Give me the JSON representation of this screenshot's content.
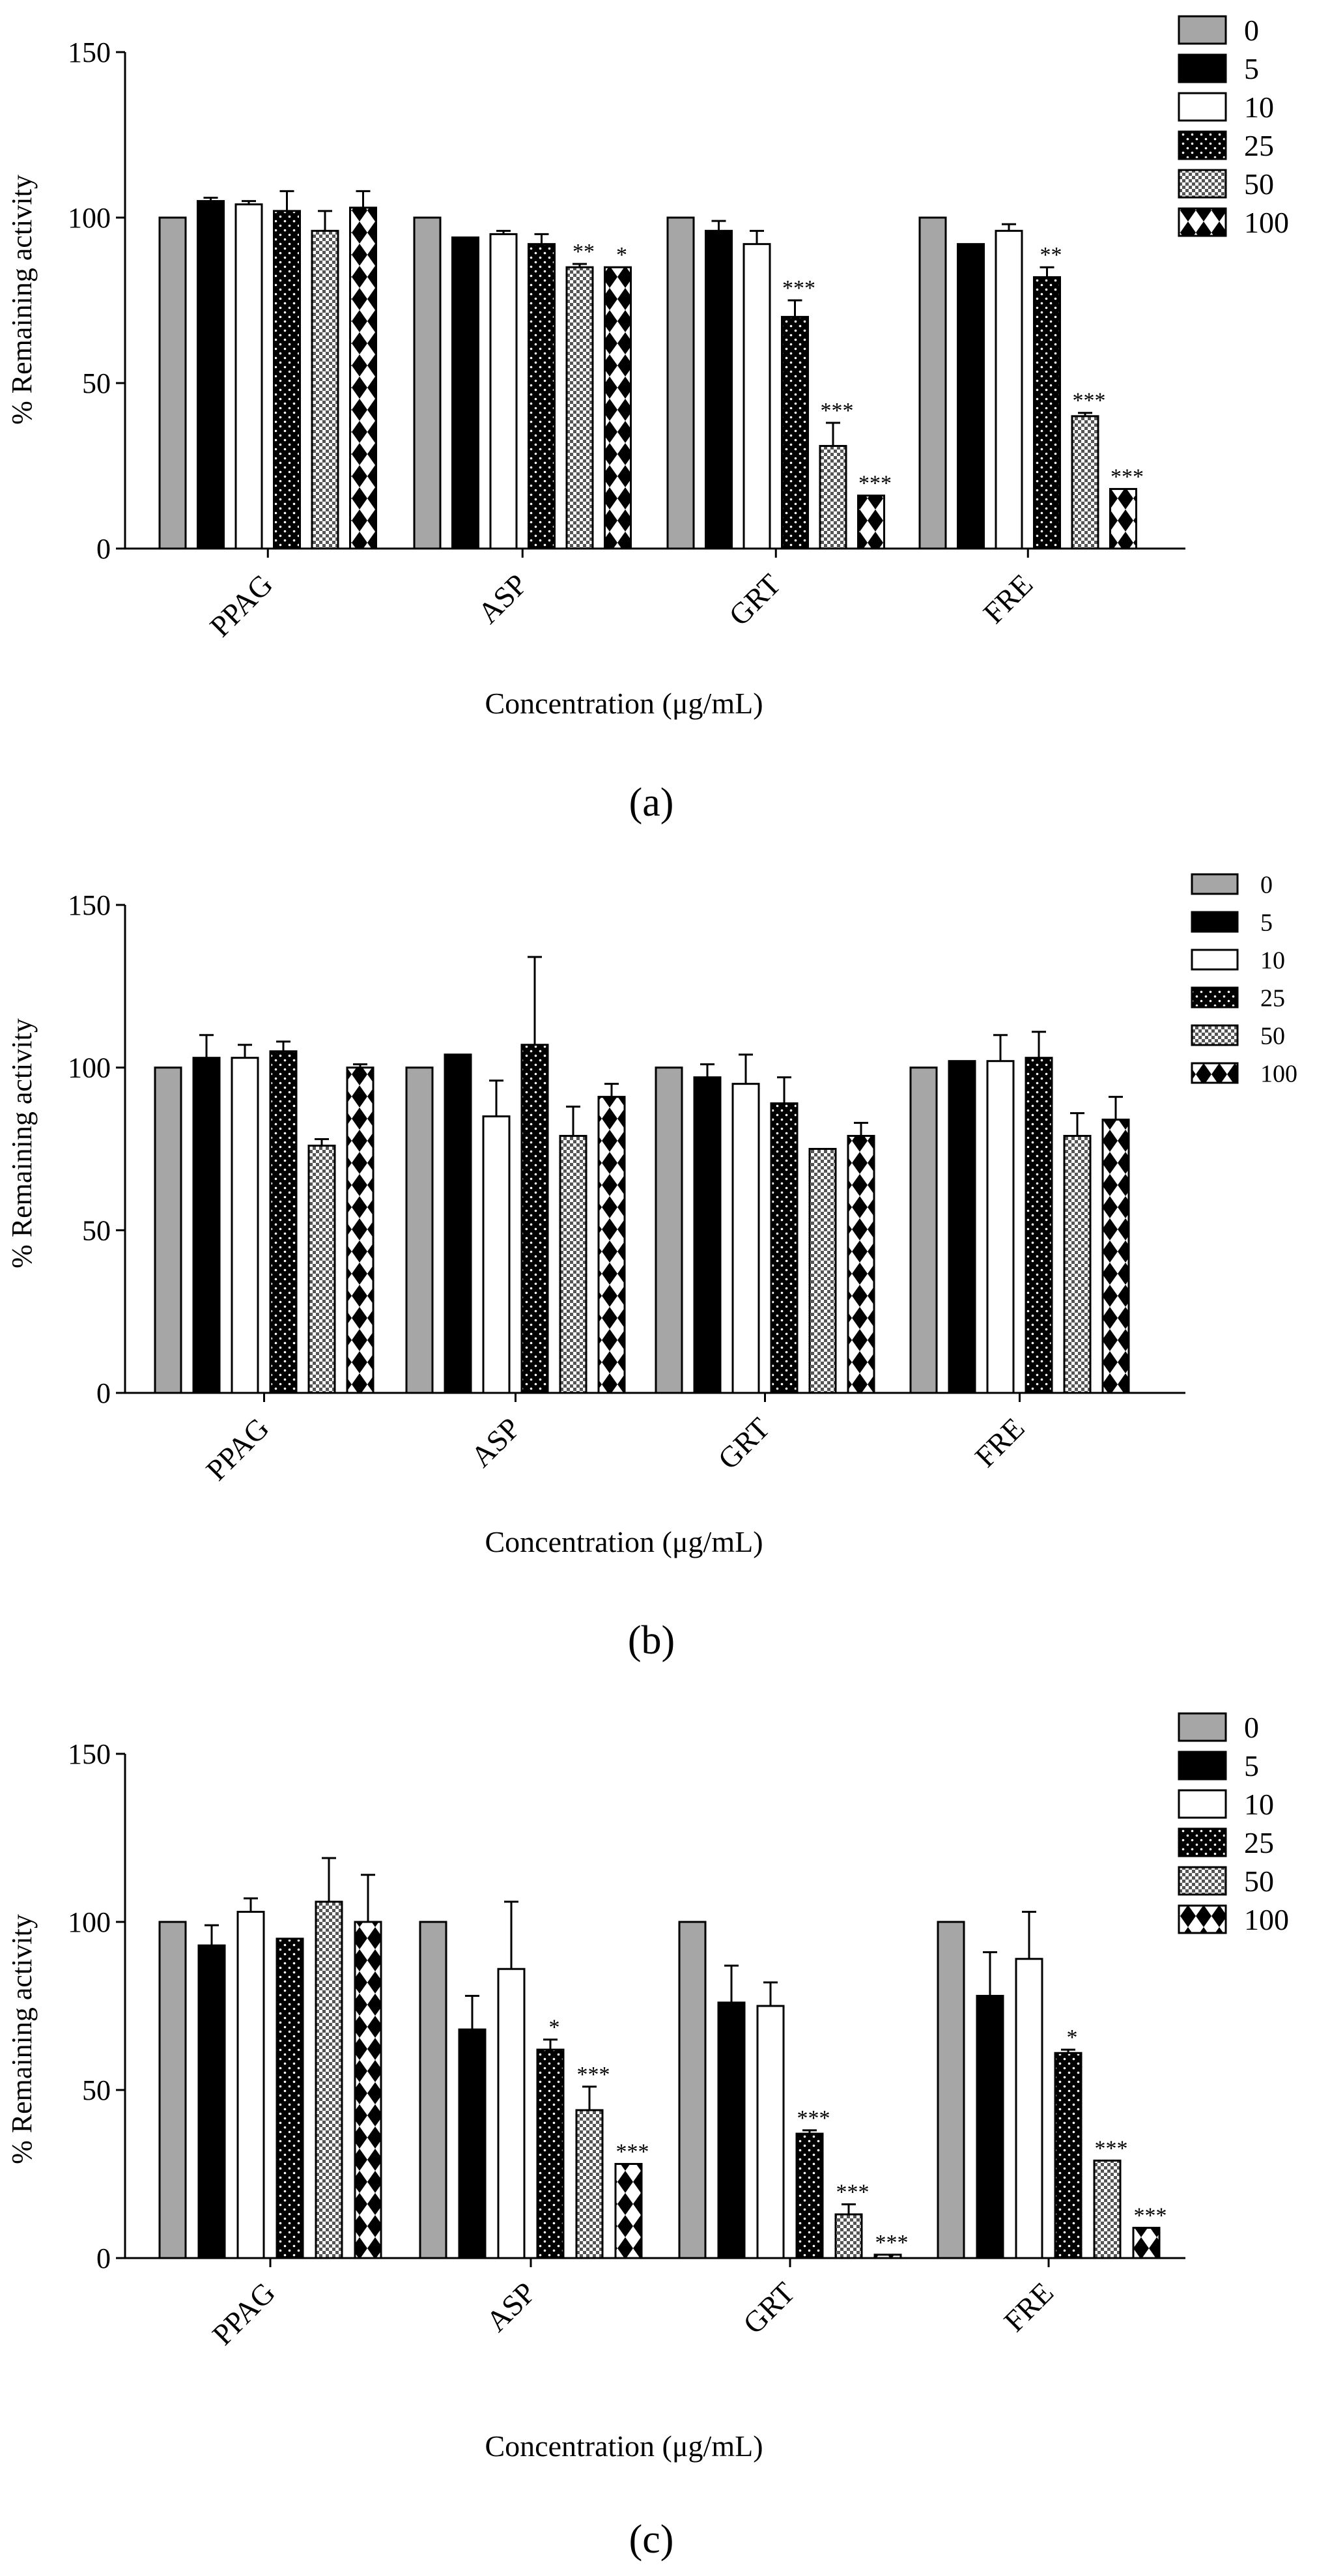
{
  "figure": {
    "legend_labels": [
      "0",
      "5",
      "10",
      "25",
      "50",
      "100"
    ]
  },
  "chart_data": [
    {
      "type": "bar",
      "panel_label": "(a)",
      "ylabel": "% Remaining activity",
      "xlabel": "Concentration (μg/mL)",
      "ylim": [
        0,
        150
      ],
      "yticks": [
        0,
        50,
        100,
        150
      ],
      "categories": [
        "PPAG",
        "ASP",
        "GRT",
        "FRE"
      ],
      "series": [
        {
          "name": "0",
          "values": [
            100,
            100,
            100,
            100
          ],
          "errors": [
            0,
            0,
            0,
            0
          ],
          "sig": [
            "",
            "",
            "",
            ""
          ]
        },
        {
          "name": "5",
          "values": [
            105,
            94,
            96,
            92
          ],
          "errors": [
            1,
            0,
            3,
            0
          ],
          "sig": [
            "",
            "",
            "",
            ""
          ]
        },
        {
          "name": "10",
          "values": [
            104,
            95,
            92,
            96
          ],
          "errors": [
            1,
            1,
            4,
            2
          ],
          "sig": [
            "",
            "",
            "",
            ""
          ]
        },
        {
          "name": "25",
          "values": [
            102,
            92,
            70,
            82
          ],
          "errors": [
            6,
            3,
            5,
            3
          ],
          "sig": [
            "",
            "",
            "***",
            "**"
          ]
        },
        {
          "name": "50",
          "values": [
            96,
            85,
            31,
            40
          ],
          "errors": [
            6,
            1,
            7,
            1
          ],
          "sig": [
            "",
            "**",
            "***",
            "***"
          ]
        },
        {
          "name": "100",
          "values": [
            103,
            85,
            16,
            18
          ],
          "errors": [
            5,
            0,
            0,
            0
          ],
          "sig": [
            "",
            "*",
            "***",
            "***"
          ]
        }
      ]
    },
    {
      "type": "bar",
      "panel_label": "(b)",
      "ylabel": "% Remaining activity",
      "xlabel": "Concentration (μg/mL)",
      "ylim": [
        0,
        150
      ],
      "yticks": [
        0,
        50,
        100,
        150
      ],
      "categories": [
        "PPAG",
        "ASP",
        "GRT",
        "FRE"
      ],
      "series": [
        {
          "name": "0",
          "values": [
            100,
            100,
            100,
            100
          ],
          "errors": [
            0,
            0,
            0,
            0
          ],
          "sig": [
            "",
            "",
            "",
            ""
          ]
        },
        {
          "name": "5",
          "values": [
            103,
            104,
            97,
            102
          ],
          "errors": [
            7,
            0,
            4,
            0
          ],
          "sig": [
            "",
            "",
            "",
            ""
          ]
        },
        {
          "name": "10",
          "values": [
            103,
            85,
            95,
            102
          ],
          "errors": [
            4,
            11,
            9,
            8
          ],
          "sig": [
            "",
            "",
            "",
            ""
          ]
        },
        {
          "name": "25",
          "values": [
            105,
            107,
            89,
            103
          ],
          "errors": [
            3,
            27,
            8,
            8
          ],
          "sig": [
            "",
            "",
            "",
            ""
          ]
        },
        {
          "name": "50",
          "values": [
            76,
            79,
            75,
            79
          ],
          "errors": [
            2,
            9,
            0,
            7
          ],
          "sig": [
            "",
            "",
            "",
            ""
          ]
        },
        {
          "name": "100",
          "values": [
            100,
            91,
            79,
            84
          ],
          "errors": [
            1,
            4,
            4,
            7
          ],
          "sig": [
            "",
            "",
            "",
            ""
          ]
        }
      ]
    },
    {
      "type": "bar",
      "panel_label": "(c)",
      "ylabel": "% Remaining activity",
      "xlabel": "Concentration (μg/mL)",
      "ylim": [
        0,
        150
      ],
      "yticks": [
        0,
        50,
        100,
        150
      ],
      "categories": [
        "PPAG",
        "ASP",
        "GRT",
        "FRE"
      ],
      "series": [
        {
          "name": "0",
          "values": [
            100,
            100,
            100,
            100
          ],
          "errors": [
            0,
            0,
            0,
            0
          ],
          "sig": [
            "",
            "",
            "",
            ""
          ]
        },
        {
          "name": "5",
          "values": [
            93,
            68,
            76,
            78
          ],
          "errors": [
            6,
            10,
            11,
            13
          ],
          "sig": [
            "",
            "",
            "",
            ""
          ]
        },
        {
          "name": "10",
          "values": [
            103,
            86,
            75,
            89
          ],
          "errors": [
            4,
            20,
            7,
            14
          ],
          "sig": [
            "",
            "",
            "",
            ""
          ]
        },
        {
          "name": "25",
          "values": [
            95,
            62,
            37,
            61
          ],
          "errors": [
            0,
            3,
            1,
            1
          ],
          "sig": [
            "",
            "*",
            "***",
            "*"
          ]
        },
        {
          "name": "50",
          "values": [
            106,
            44,
            13,
            29
          ],
          "errors": [
            13,
            7,
            3,
            0
          ],
          "sig": [
            "",
            "***",
            "***",
            "***"
          ]
        },
        {
          "name": "100",
          "values": [
            100,
            28,
            1,
            9
          ],
          "errors": [
            14,
            0,
            0,
            0
          ],
          "sig": [
            "",
            "***",
            "***",
            "***"
          ]
        }
      ]
    }
  ]
}
